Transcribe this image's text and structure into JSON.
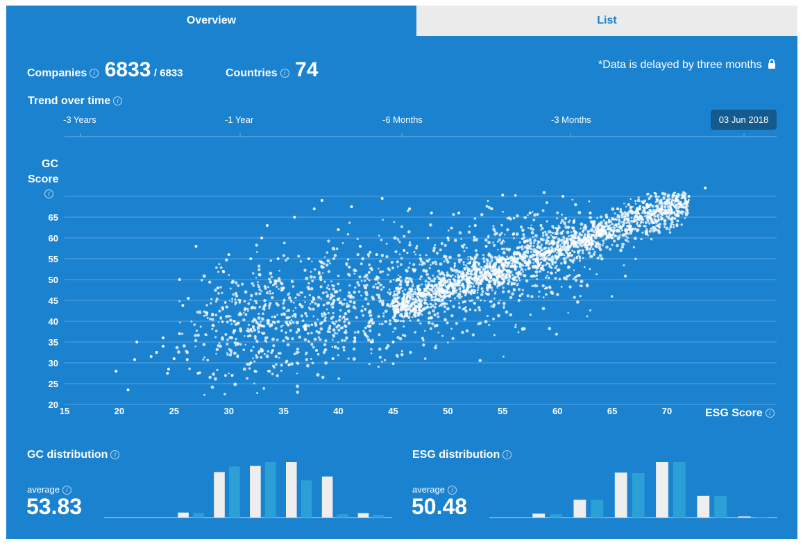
{
  "tabs": [
    {
      "label": "Overview"
    },
    {
      "label": "List"
    }
  ],
  "stats": {
    "companies_label": "Companies",
    "companies_value": "6833",
    "companies_total": "/ 6833",
    "countries_label": "Countries",
    "countries_value": "74",
    "delay_note": "*Data is delayed by three months"
  },
  "trend": {
    "title": "Trend over time",
    "ticks": [
      "-3 Years",
      "-1 Year",
      "-6 Months",
      "-3 Months"
    ],
    "selected_date": "03 Jun 2018"
  },
  "colors": {
    "panel": "#1b82d0",
    "point": "#ffffff",
    "bar_white": "#eeeeee",
    "bar_teal": "#2aa0d6"
  },
  "chart_data": [
    {
      "type": "scatter",
      "title": "",
      "xlabel": "ESG Score",
      "ylabel_line1": "GC",
      "ylabel_line2": "Score",
      "xlim": [
        15,
        73
      ],
      "ylim": [
        20,
        72
      ],
      "x_ticks": [
        15,
        20,
        25,
        30,
        35,
        40,
        45,
        50,
        55,
        60,
        65,
        70
      ],
      "y_ticks": [
        20,
        25,
        30,
        35,
        40,
        45,
        50,
        55,
        60,
        65
      ],
      "grid": true,
      "points": [
        [
          19.7,
          28
        ],
        [
          20.8,
          23.5
        ],
        [
          21.4,
          30.8
        ],
        [
          21.6,
          35
        ],
        [
          22.9,
          31.5
        ],
        [
          23.4,
          32.5
        ],
        [
          24,
          36
        ],
        [
          24,
          34
        ],
        [
          24.4,
          27.5
        ],
        [
          24.5,
          28.5
        ],
        [
          25,
          31
        ],
        [
          25.5,
          37
        ],
        [
          25.5,
          50
        ],
        [
          25.8,
          43.8
        ],
        [
          26.2,
          30.8
        ],
        [
          26.3,
          45.5
        ],
        [
          27,
          58
        ],
        [
          27.2,
          27.5
        ],
        [
          28,
          42
        ],
        [
          28.5,
          41.5
        ],
        [
          29,
          48
        ],
        [
          29.5,
          52
        ],
        [
          30,
          56
        ],
        [
          30.3,
          27
        ],
        [
          30.5,
          40
        ],
        [
          30.8,
          31.5
        ],
        [
          31,
          45
        ],
        [
          31.5,
          43
        ],
        [
          32,
          38
        ],
        [
          32,
          55
        ],
        [
          32,
          30
        ],
        [
          32.4,
          28
        ],
        [
          33,
          60
        ],
        [
          33.5,
          63
        ],
        [
          33.7,
          28
        ],
        [
          34,
          33
        ],
        [
          34.5,
          55
        ],
        [
          35,
          48
        ],
        [
          35.5,
          29.5
        ],
        [
          36,
          65
        ],
        [
          36.5,
          44
        ],
        [
          37,
          38
        ],
        [
          37.3,
          55
        ],
        [
          37.8,
          67
        ],
        [
          38,
          33
        ],
        [
          38.4,
          50
        ],
        [
          38.5,
          69
        ],
        [
          39,
          46
        ],
        [
          39.5,
          31
        ],
        [
          40,
          62
        ],
        [
          40.5,
          41
        ],
        [
          41,
          53
        ],
        [
          41.2,
          67.5
        ],
        [
          41.5,
          36
        ],
        [
          42,
          58
        ],
        [
          42.5,
          48
        ],
        [
          43,
          35
        ],
        [
          43.5,
          56
        ],
        [
          44,
          69.5
        ],
        [
          44.5,
          44
        ],
        [
          45,
          35
        ],
        [
          45.5,
          50
        ],
        [
          46,
          57
        ],
        [
          46.5,
          67
        ],
        [
          47,
          42
        ],
        [
          47.5,
          55
        ],
        [
          48,
          52
        ],
        [
          48.5,
          66
        ],
        [
          49,
          39
        ],
        [
          49.5,
          45
        ],
        [
          50,
          60
        ],
        [
          50.5,
          48
        ],
        [
          51,
          66
        ],
        [
          51.5,
          43
        ],
        [
          52,
          54
        ],
        [
          52.5,
          63
        ],
        [
          53,
          49
        ],
        [
          53.5,
          58
        ],
        [
          54,
          67
        ],
        [
          54.5,
          50
        ],
        [
          55,
          70.3
        ],
        [
          55.5,
          55
        ],
        [
          56,
          61
        ],
        [
          56.5,
          45
        ],
        [
          57,
          59
        ],
        [
          57.5,
          66
        ],
        [
          58,
          53
        ],
        [
          58.5,
          63
        ],
        [
          59,
          48
        ],
        [
          59.5,
          57
        ],
        [
          60,
          62
        ],
        [
          60.5,
          70
        ],
        [
          61,
          56
        ],
        [
          61.5,
          64
        ],
        [
          62,
          51
        ],
        [
          62.5,
          60
        ],
        [
          63,
          66
        ],
        [
          63.5,
          58
        ],
        [
          64,
          62
        ],
        [
          64.5,
          65
        ],
        [
          65,
          60
        ],
        [
          65.5,
          67
        ],
        [
          66,
          63
        ],
        [
          66.5,
          68
        ],
        [
          67,
          64
        ],
        [
          67.5,
          67
        ],
        [
          68,
          66
        ],
        [
          68.5,
          68
        ],
        [
          69,
          70
        ],
        [
          69.5,
          67
        ],
        [
          70,
          69
        ],
        [
          70.5,
          68
        ],
        [
          71,
          69
        ],
        [
          71.5,
          70
        ],
        [
          72,
          70
        ],
        [
          73.5,
          72
        ]
      ]
    },
    {
      "type": "bar",
      "title": "GC distribution",
      "average_label": "average",
      "average_value": "53.83",
      "series": [
        {
          "values": [
            0,
            0,
            0.09,
            0.82,
            0.93,
            1.0,
            0.74,
            0.08
          ]
        },
        {
          "values": [
            0,
            0,
            0.08,
            0.92,
            1.0,
            0.67,
            0.06,
            0.05
          ]
        }
      ]
    },
    {
      "type": "bar",
      "title": "ESG distribution",
      "average_label": "average",
      "average_value": "50.48",
      "series": [
        {
          "values": [
            0,
            0.07,
            0.32,
            0.81,
            1.0,
            0.39,
            0.02
          ]
        },
        {
          "values": [
            0,
            0.06,
            0.32,
            0.8,
            1.0,
            0.39,
            0.01
          ]
        }
      ]
    }
  ],
  "scatter_cloud": {
    "count": 3200
  }
}
